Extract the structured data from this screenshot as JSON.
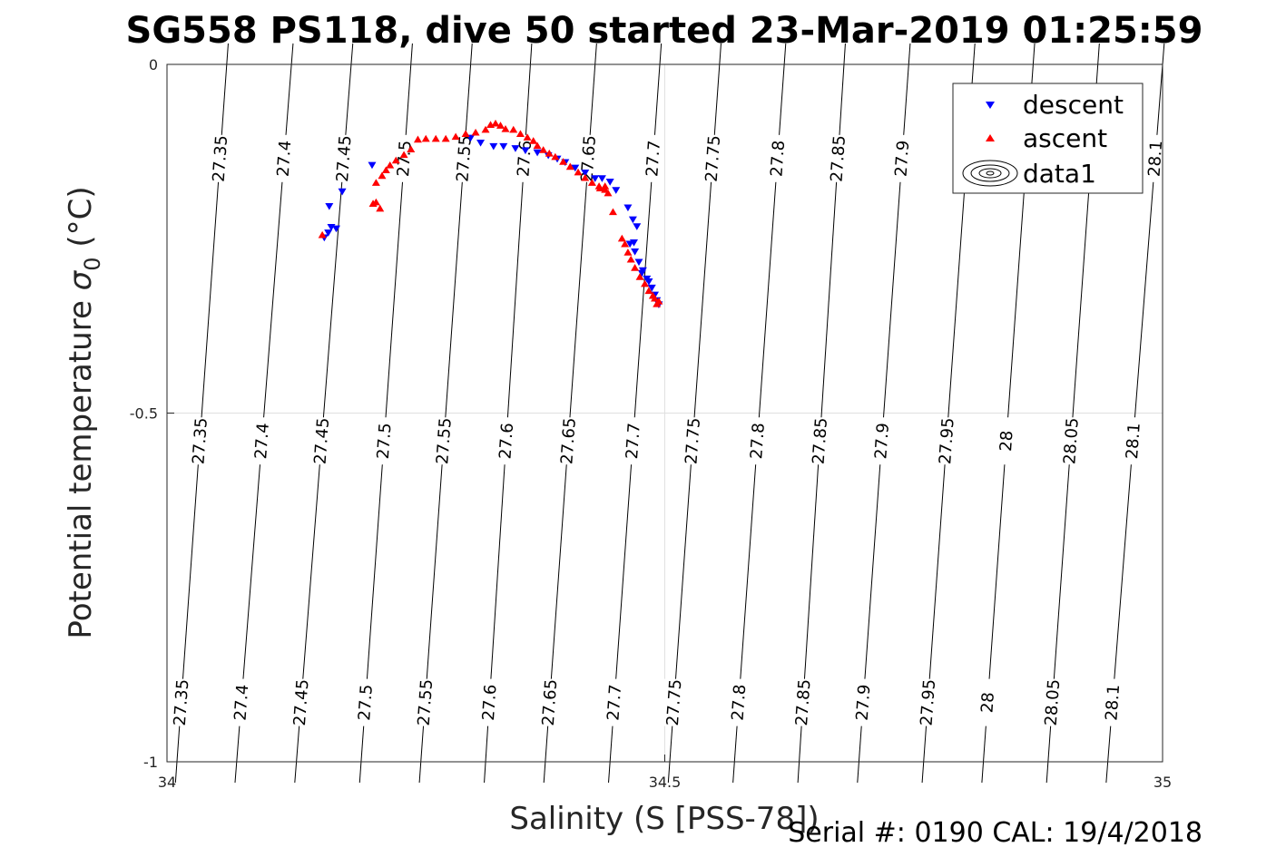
{
  "title": "SG558 PS118, dive 50 started 23-Mar-2019 01:25:59",
  "footer": "Serial #: 0190  CAL: 19/4/2018",
  "colors": {
    "descent": "#0000ff",
    "ascent": "#ff0000",
    "contour": "#000000",
    "grid": "#e0e0e0",
    "axis": "#262626"
  },
  "chart_data": {
    "type": "scatter",
    "xlabel": "Salinity (S [PSS-78])",
    "ylabel_main": "Potential temperature ",
    "ylabel_sigma": "σ",
    "ylabel_sub": "0",
    "ylabel_unit": " (°C)",
    "xlim": [
      34,
      35
    ],
    "ylim": [
      -1,
      0
    ],
    "x_ticks": [
      "34",
      "34.5",
      "35"
    ],
    "y_ticks": [
      "0",
      "-0.5",
      "-1"
    ],
    "x_tick_values": [
      34,
      34.5,
      35
    ],
    "y_tick_values": [
      0,
      -0.5,
      -1
    ],
    "grid": true,
    "legend_position": "top-right",
    "legend": [
      {
        "label": "descent",
        "marker": "triangle-down",
        "color": "#0000ff"
      },
      {
        "label": "ascent",
        "marker": "triangle-up",
        "color": "#ff0000"
      },
      {
        "label": "data1",
        "marker": "contour-ellipse",
        "color": "#000000"
      }
    ],
    "contours": {
      "levels": [
        "27.35",
        "27.4",
        "27.45",
        "27.5",
        "27.55",
        "27.6",
        "27.65",
        "27.7",
        "27.75",
        "27.8",
        "27.85",
        "27.9",
        "27.95",
        "28",
        "28.05",
        "28.1"
      ],
      "x_at_top": [
        34.06,
        34.125,
        34.185,
        34.245,
        34.305,
        34.365,
        34.43,
        34.495,
        34.555,
        34.62,
        34.68,
        34.745,
        34.81,
        34.87,
        34.935,
        35.0
      ],
      "x_at_bottom": [
        34.01,
        34.07,
        34.13,
        34.195,
        34.255,
        34.32,
        34.38,
        34.445,
        34.505,
        34.57,
        34.635,
        34.695,
        34.76,
        34.82,
        34.885,
        34.945
      ],
      "label_rows": [
        {
          "y": -0.135,
          "levels": [
            "27.35",
            "27.4",
            "27.45",
            "27.5",
            "27.55",
            "27.6",
            "27.65",
            "27.7",
            "27.75",
            "27.8",
            "27.85",
            "27.9",
            "28.1"
          ]
        },
        {
          "y": -0.54,
          "levels": [
            "27.35",
            "27.4",
            "27.45",
            "27.5",
            "27.55",
            "27.6",
            "27.65",
            "27.7",
            "27.75",
            "27.8",
            "27.85",
            "27.9",
            "27.95",
            "28",
            "28.05",
            "28.1"
          ]
        },
        {
          "y": -0.915,
          "levels": [
            "27.35",
            "27.4",
            "27.45",
            "27.5",
            "27.55",
            "27.6",
            "27.65",
            "27.7",
            "27.75",
            "27.8",
            "27.85",
            "27.9",
            "27.95",
            "28",
            "28.05",
            "28.1"
          ]
        }
      ]
    },
    "series": [
      {
        "name": "descent",
        "marker": "triangle-down",
        "points": [
          [
            34.158,
            -0.248
          ],
          [
            34.162,
            -0.241
          ],
          [
            34.165,
            -0.233
          ],
          [
            34.17,
            -0.235
          ],
          [
            34.163,
            -0.203
          ],
          [
            34.176,
            -0.182
          ],
          [
            34.206,
            -0.144
          ],
          [
            34.305,
            -0.105
          ],
          [
            34.315,
            -0.112
          ],
          [
            34.328,
            -0.117
          ],
          [
            34.338,
            -0.117
          ],
          [
            34.35,
            -0.12
          ],
          [
            34.36,
            -0.123
          ],
          [
            34.372,
            -0.126
          ],
          [
            34.383,
            -0.13
          ],
          [
            34.392,
            -0.135
          ],
          [
            34.4,
            -0.14
          ],
          [
            34.41,
            -0.148
          ],
          [
            34.42,
            -0.155
          ],
          [
            34.43,
            -0.163
          ],
          [
            34.437,
            -0.163
          ],
          [
            34.445,
            -0.168
          ],
          [
            34.451,
            -0.18
          ],
          [
            34.463,
            -0.205
          ],
          [
            34.468,
            -0.222
          ],
          [
            34.472,
            -0.232
          ],
          [
            34.469,
            -0.255
          ],
          [
            34.465,
            -0.257
          ],
          [
            34.47,
            -0.268
          ],
          [
            34.474,
            -0.283
          ],
          [
            34.478,
            -0.295
          ],
          [
            34.482,
            -0.307
          ],
          [
            34.487,
            -0.32
          ],
          [
            34.49,
            -0.33
          ],
          [
            34.492,
            -0.338
          ],
          [
            34.494,
            -0.344
          ],
          [
            34.484,
            -0.311
          ],
          [
            34.477,
            -0.299
          ]
        ]
      },
      {
        "name": "ascent",
        "marker": "triangle-up",
        "points": [
          [
            34.156,
            -0.245
          ],
          [
            34.207,
            -0.2
          ],
          [
            34.21,
            -0.198
          ],
          [
            34.214,
            -0.207
          ],
          [
            34.21,
            -0.17
          ],
          [
            34.216,
            -0.16
          ],
          [
            34.22,
            -0.152
          ],
          [
            34.224,
            -0.145
          ],
          [
            34.23,
            -0.138
          ],
          [
            34.238,
            -0.13
          ],
          [
            34.245,
            -0.122
          ],
          [
            34.252,
            -0.108
          ],
          [
            34.26,
            -0.107
          ],
          [
            34.27,
            -0.107
          ],
          [
            34.28,
            -0.107
          ],
          [
            34.29,
            -0.104
          ],
          [
            34.3,
            -0.1
          ],
          [
            34.31,
            -0.098
          ],
          [
            34.32,
            -0.094
          ],
          [
            34.325,
            -0.087
          ],
          [
            34.33,
            -0.085
          ],
          [
            34.335,
            -0.088
          ],
          [
            34.34,
            -0.093
          ],
          [
            34.348,
            -0.094
          ],
          [
            34.355,
            -0.1
          ],
          [
            34.362,
            -0.105
          ],
          [
            34.368,
            -0.11
          ],
          [
            34.372,
            -0.117
          ],
          [
            34.378,
            -0.123
          ],
          [
            34.384,
            -0.128
          ],
          [
            34.39,
            -0.133
          ],
          [
            34.398,
            -0.14
          ],
          [
            34.405,
            -0.147
          ],
          [
            34.413,
            -0.155
          ],
          [
            34.42,
            -0.163
          ],
          [
            34.427,
            -0.17
          ],
          [
            34.434,
            -0.175
          ],
          [
            34.44,
            -0.18
          ],
          [
            34.443,
            -0.185
          ],
          [
            34.435,
            -0.178
          ],
          [
            34.44,
            -0.175
          ],
          [
            34.448,
            -0.212
          ],
          [
            34.457,
            -0.25
          ],
          [
            34.46,
            -0.258
          ],
          [
            34.463,
            -0.27
          ],
          [
            34.466,
            -0.28
          ],
          [
            34.47,
            -0.292
          ],
          [
            34.475,
            -0.305
          ],
          [
            34.48,
            -0.315
          ],
          [
            34.484,
            -0.325
          ],
          [
            34.488,
            -0.332
          ],
          [
            34.49,
            -0.336
          ],
          [
            34.494,
            -0.34
          ],
          [
            34.492,
            -0.344
          ]
        ]
      }
    ]
  }
}
